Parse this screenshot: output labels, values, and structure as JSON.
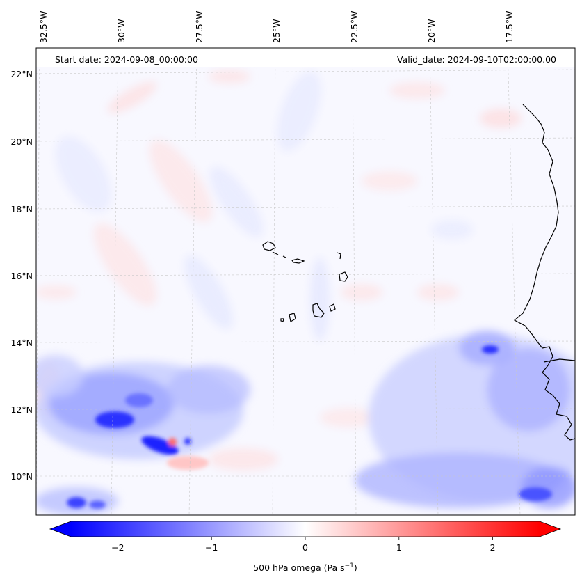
{
  "map": {
    "start_date": "Start date: 2024-09-08_00:00:00",
    "valid_date": "Valid_date: 2024-09-10T02:00:00.00",
    "lon_labels": [
      "32.5°W",
      "30°W",
      "27.5°W",
      "25°W",
      "22.5°W",
      "20°W",
      "17.5°W"
    ],
    "lat_labels": [
      "22°N",
      "20°N",
      "18°N",
      "16°N",
      "14°N",
      "12°N",
      "10°N"
    ],
    "colors": {
      "negative": "#0000ff",
      "zero": "#ffffff",
      "positive": "#ff0000",
      "coast": "#000000",
      "grid": "#b0b0b0"
    }
  },
  "colorbar": {
    "label": "500 hPa omega (Pa s",
    "label_sup": "−1",
    "label_close": ")",
    "ticks": [
      "−2",
      "−1",
      "0",
      "1",
      "2"
    ],
    "tick_values": [
      -2,
      -1,
      0,
      1,
      2
    ],
    "range": [
      -2.5,
      2.5
    ],
    "extend": "both"
  }
}
